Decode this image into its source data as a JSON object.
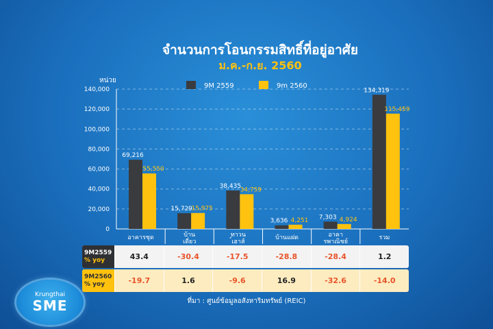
{
  "colors": {
    "series_2559": "#3a3b3e",
    "series_2560": "#ffc20e",
    "background": "#1a6fbd",
    "negative": "#e8542a"
  },
  "chart_data": {
    "type": "bar",
    "title": "จำนวนการโอนกรรมสิทธิ์ที่อยู่อาศัย",
    "subtitle": "ม.ค.-ก.ย. 2560",
    "ylabel": "หน่วย",
    "xlabel": "",
    "ylim": [
      0,
      140000
    ],
    "yticks": [
      "0",
      "20,000",
      "40,000",
      "60,000",
      "80,000",
      "100,000",
      "120,000",
      "140,000"
    ],
    "categories": [
      "อาคารชุด",
      "บ้านเดี่ยว",
      "ทาวน์เฮาส์",
      "บ้านแฝด",
      "อาคารพาณิชย์",
      "รวม"
    ],
    "series": [
      {
        "name": "9M 2559",
        "values": [
          69216,
          15729,
          38435,
          3636,
          7303,
          134319
        ],
        "labels": [
          "69,216",
          "15,729",
          "38,435",
          "3,636",
          "7,303",
          "134,319"
        ]
      },
      {
        "name": "9m 2560",
        "values": [
          55550,
          15975,
          34759,
          4251,
          4924,
          115459
        ],
        "labels": [
          "55,550",
          "15,975",
          "34,759",
          "4,251",
          "4,924",
          "115,459"
        ]
      }
    ],
    "grid": true,
    "legend": "top"
  },
  "table": {
    "rows": [
      {
        "label": "9M2559",
        "sub": "% yoy",
        "values": [
          "43.4",
          "-30.4",
          "-17.5",
          "-28.8",
          "-28.4",
          "1.2"
        ]
      },
      {
        "label": "9M2560",
        "sub": "% yoy",
        "values": [
          "-19.7",
          "1.6",
          "-9.6",
          "16.9",
          "-32.6",
          "-14.0"
        ]
      }
    ]
  },
  "source": "ที่มา : ศูนย์ข้อมูลอสังหาริมทรัพย์ (REIC)",
  "logo": {
    "top": "Krungthai",
    "main": "SME"
  }
}
